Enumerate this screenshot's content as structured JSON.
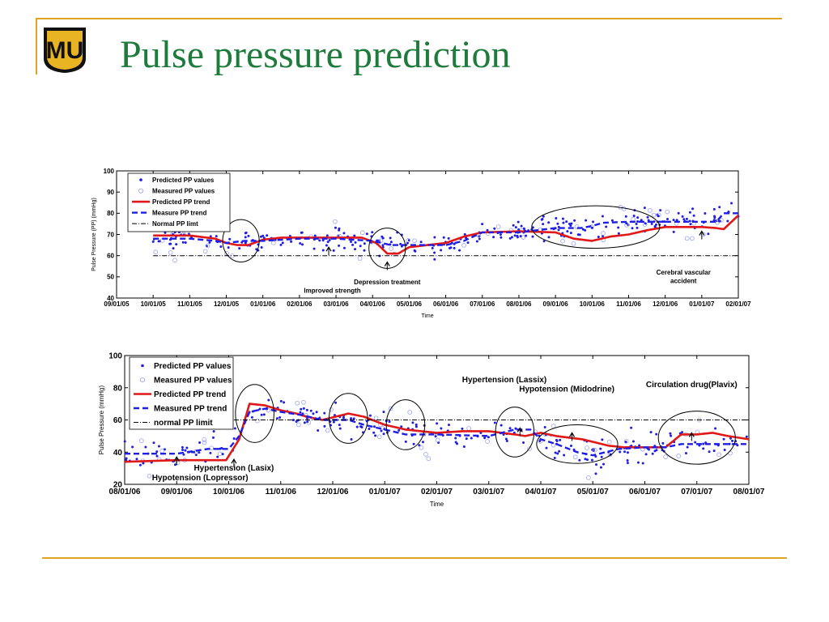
{
  "slide": {
    "title": "Pulse pressure prediction",
    "logo_text": "MU"
  },
  "colors": {
    "accent_rule": "#DDA520",
    "title": "#1E7B3C",
    "predicted_points": "#1E1EE6",
    "measured_points": "#9AA0F0",
    "predicted_trend": "#E01818",
    "measured_trend": "#1E1EE6",
    "normal_line": "#000000"
  },
  "chart_data": [
    {
      "type": "line",
      "title": "",
      "xlabel": "Time",
      "ylabel": "Pulse Pressure (PP) (mmHg)",
      "ylim": [
        40,
        100
      ],
      "yticks": [
        40,
        50,
        60,
        70,
        80,
        90,
        100
      ],
      "x_tick_labels": [
        "09/01/05",
        "10/01/05",
        "11/01/05",
        "12/01/05",
        "01/01/06",
        "02/01/06",
        "03/01/06",
        "04/01/06",
        "05/01/06",
        "06/01/06",
        "07/01/06",
        "08/01/06",
        "09/01/06",
        "10/01/06",
        "11/01/06",
        "12/01/06",
        "01/01/07",
        "02/01/07"
      ],
      "grid": false,
      "legend_position": "top-left",
      "legend": [
        "Predicted PP values",
        "Measured PP values",
        "Predicted PP trend",
        "Measure PP trend",
        "Normal PP limt"
      ],
      "x_range": [
        0,
        17
      ],
      "series": [
        {
          "name": "Predicted PP trend",
          "kind": "trend-solid",
          "x": [
            1,
            2,
            2.7,
            3,
            3.3,
            3.6,
            4,
            4.5,
            5,
            6,
            6.7,
            7.1,
            7.4,
            7.7,
            8,
            8.5,
            9,
            9.5,
            10,
            11,
            12,
            12.5,
            13,
            13.5,
            14,
            14.5,
            15,
            15.7,
            16,
            16.4,
            16.6,
            17
          ],
          "values": [
            69.5,
            69.5,
            68,
            66,
            65,
            65,
            67.5,
            68.5,
            68.5,
            68.5,
            68.5,
            66,
            61,
            61,
            64,
            65,
            66,
            69,
            71,
            71.5,
            71,
            68,
            67,
            69,
            70,
            72,
            73.5,
            73.5,
            73.5,
            73,
            72.5,
            79
          ]
        },
        {
          "name": "Measure PP trend",
          "kind": "trend-dashed",
          "x": [
            1,
            2,
            2.7,
            3,
            3.5,
            4,
            5,
            6,
            7,
            7.5,
            8,
            9,
            9.5,
            10,
            11,
            12,
            12.7,
            13,
            13.3,
            14,
            14.5,
            15,
            15.5,
            16,
            16.4,
            16.6,
            17
          ],
          "values": [
            68,
            68,
            67,
            66,
            67,
            67,
            68,
            68,
            67,
            65,
            65,
            65,
            67,
            71,
            71,
            73,
            73,
            74,
            75.5,
            76,
            76,
            76,
            76,
            76,
            76,
            80,
            80
          ]
        },
        {
          "name": "Normal PP limt",
          "kind": "normal",
          "x": [
            1,
            17
          ],
          "values": [
            60,
            60
          ]
        }
      ],
      "annotations": [
        {
          "text": "Improved strength",
          "x": 5.9,
          "y": 42.5,
          "arrow_x": 5.8,
          "arrow_y": 64
        },
        {
          "text": "Depression treatment",
          "x": 7.4,
          "y": 46.5,
          "arrow_x": 7.4,
          "arrow_y": 57
        },
        {
          "text": "Cerebral vascular",
          "x": 15.5,
          "y": 51,
          "arrow_x": null,
          "arrow_y": null
        },
        {
          "text": "accident",
          "x": 15.5,
          "y": 47,
          "arrow_x": 16,
          "arrow_y": 71.5
        }
      ],
      "ellipses": [
        {
          "cx": 3.4,
          "cy": 67,
          "rx": 0.5,
          "ry": 10
        },
        {
          "cx": 7.4,
          "cy": 63.5,
          "rx": 0.5,
          "ry": 9.5
        },
        {
          "cx": 13.1,
          "cy": 73.5,
          "rx": 1.75,
          "ry": 10
        }
      ]
    },
    {
      "type": "line",
      "title": "",
      "xlabel": "Time",
      "ylabel": "Pulse Pressure (mmHg)",
      "ylim": [
        20,
        100
      ],
      "yticks": [
        20,
        40,
        60,
        80,
        100
      ],
      "x_tick_labels": [
        "08/01/06",
        "09/01/06",
        "10/01/06",
        "11/01/06",
        "12/01/06",
        "01/01/07",
        "02/01/07",
        "03/01/07",
        "04/01/07",
        "05/01/07",
        "06/01/07",
        "07/01/07",
        "08/01/07"
      ],
      "grid": false,
      "legend_position": "top-left",
      "legend": [
        "Predicted PP values",
        "Measured PP values",
        "Predicted PP trend",
        "Measured PP trend",
        "normal PP limit"
      ],
      "x_range": [
        0,
        12
      ],
      "series": [
        {
          "name": "Predicted PP trend",
          "kind": "trend-solid",
          "x": [
            0,
            1,
            1.6,
            1.95,
            2.2,
            2.4,
            2.7,
            3,
            3.3,
            3.5,
            3.8,
            4.3,
            4.6,
            5,
            5.4,
            6,
            6.5,
            7,
            7.5,
            7.7,
            8,
            8.3,
            8.8,
            9.3,
            9.6,
            10,
            10.4,
            10.7,
            11,
            11.3,
            11.6,
            12
          ],
          "values": [
            34,
            35,
            35,
            35,
            48,
            70,
            69,
            66,
            64,
            62,
            60,
            64,
            62,
            57,
            54,
            52,
            53,
            53,
            51,
            50,
            52,
            50,
            48,
            44,
            43,
            43,
            43,
            51,
            51,
            52,
            50,
            48
          ]
        },
        {
          "name": "Measured PP trend",
          "kind": "trend-dashed",
          "x": [
            0,
            0.4,
            1,
            1.6,
            2,
            2.2,
            2.4,
            2.7,
            3,
            3.4,
            3.8,
            4.3,
            4.6,
            5,
            5.4,
            6,
            7,
            7.5,
            7.8,
            8,
            8.3,
            8.7,
            9,
            9.5,
            10,
            10.4,
            10.7,
            11,
            11.5,
            12
          ],
          "values": [
            39,
            39,
            39,
            42,
            42,
            50,
            65,
            67,
            65,
            63,
            60,
            60,
            57,
            54,
            51,
            51,
            50,
            54,
            54,
            48,
            45,
            40,
            38,
            42,
            43,
            43,
            45,
            45,
            45,
            45
          ]
        },
        {
          "name": "normal PP limit",
          "kind": "normal",
          "x": [
            2.1,
            12
          ],
          "values": [
            60,
            60
          ]
        }
      ],
      "annotations": [
        {
          "text": "Hypotension (Lopressor)",
          "x": 1.45,
          "y": 22.5,
          "arrow_x": 1,
          "arrow_y": 37
        },
        {
          "text": "Hypertension (Lasix)",
          "x": 2.1,
          "y": 28.5,
          "arrow_x": 2.1,
          "arrow_y": 35.5
        },
        {
          "text": "Hypertension (Lassix)",
          "x": 7.3,
          "y": 83.5,
          "arrow_x": 7.6,
          "arrow_y": 55
        },
        {
          "text": "Hypotension (Midodrine)",
          "x": 8.5,
          "y": 77.5,
          "arrow_x": 8.6,
          "arrow_y": 52
        },
        {
          "text": "Circulation drug(Plavix)",
          "x": 10.9,
          "y": 80.5,
          "arrow_x": 10.9,
          "arrow_y": 52
        }
      ],
      "ellipses": [
        {
          "cx": 2.5,
          "cy": 64,
          "rx": 0.37,
          "ry": 18
        },
        {
          "cx": 4.3,
          "cy": 61,
          "rx": 0.37,
          "ry": 15.5
        },
        {
          "cx": 5.4,
          "cy": 57,
          "rx": 0.37,
          "ry": 15.5
        },
        {
          "cx": 7.5,
          "cy": 52.5,
          "rx": 0.37,
          "ry": 15.5
        },
        {
          "cx": 8.7,
          "cy": 45,
          "rx": 0.78,
          "ry": 12
        },
        {
          "cx": 11,
          "cy": 49,
          "rx": 0.74,
          "ry": 16.5
        }
      ]
    }
  ]
}
